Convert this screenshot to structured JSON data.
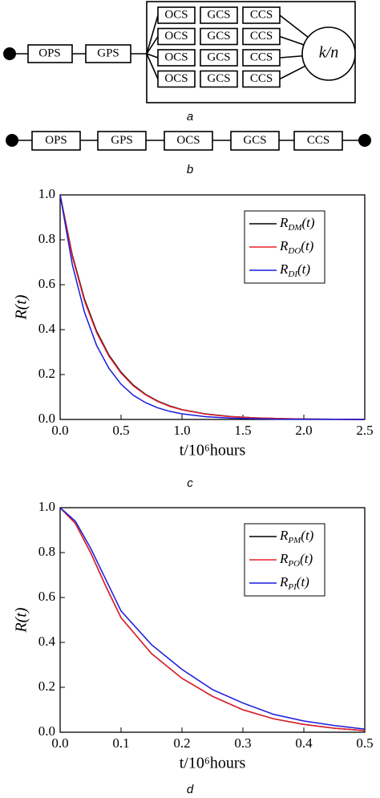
{
  "diagram_a": {
    "left": [
      "OPS",
      "GPS"
    ],
    "rows": [
      [
        "OCS",
        "GCS",
        "CCS"
      ],
      [
        "OCS",
        "GCS",
        "CCS"
      ],
      [
        "OCS",
        "GCS",
        "CCS"
      ],
      [
        "OCS",
        "GCS",
        "CCS"
      ]
    ],
    "voter": "k/n",
    "caption": "a"
  },
  "diagram_b": {
    "blocks": [
      "OPS",
      "GPS",
      "OCS",
      "GCS",
      "CCS"
    ],
    "caption": "b"
  },
  "chart_data": [
    {
      "type": "line",
      "caption": "c",
      "ylabel": "R(t)",
      "xlabel": "t/10⁶hours",
      "x": [
        0,
        0.1,
        0.2,
        0.3,
        0.4,
        0.5,
        0.6,
        0.7,
        0.8,
        0.9,
        1.0,
        1.2,
        1.4,
        1.6,
        1.8,
        2.0,
        2.5
      ],
      "series": [
        {
          "name": "RDM(t)",
          "color": "#000000",
          "values": [
            1,
            0.732,
            0.535,
            0.392,
            0.287,
            0.21,
            0.153,
            0.112,
            0.082,
            0.06,
            0.044,
            0.024,
            0.013,
            0.007,
            0.004,
            0.002,
            0
          ]
        },
        {
          "name": "RDO(t)",
          "color": "#e8202a",
          "values": [
            1,
            0.725,
            0.528,
            0.386,
            0.282,
            0.206,
            0.15,
            0.11,
            0.08,
            0.058,
            0.043,
            0.023,
            0.012,
            0.007,
            0.004,
            0.002,
            0
          ]
        },
        {
          "name": "RDI(t)",
          "color": "#1a1adb",
          "values": [
            1,
            0.69,
            0.477,
            0.329,
            0.228,
            0.157,
            0.108,
            0.075,
            0.052,
            0.036,
            0.025,
            0.012,
            0.006,
            0.003,
            0.001,
            0.001,
            0
          ]
        }
      ],
      "xlim": [
        0,
        2.5
      ],
      "ylim": [
        0,
        1
      ],
      "xticks": [
        {
          "value": 0,
          "label": "0.0"
        },
        0.5,
        {
          "value": 1,
          "label": "1.0"
        },
        1.5,
        {
          "value": 2,
          "label": "2.0"
        },
        2.5
      ],
      "yticks": [
        {
          "value": 0,
          "label": "0.0"
        },
        0.2,
        0.4,
        0.6,
        0.8,
        {
          "value": 1,
          "label": "1.0"
        }
      ],
      "legend": "upper right"
    },
    {
      "type": "line",
      "caption": "d",
      "ylabel": "R(t)",
      "xlabel": "t/10⁶hours",
      "x": [
        0,
        0.025,
        0.05,
        0.075,
        0.1,
        0.15,
        0.2,
        0.25,
        0.3,
        0.35,
        0.4,
        0.45,
        0.5
      ],
      "series": [
        {
          "name": "RPM(t)",
          "color": "#000000",
          "values": [
            1,
            0.93,
            0.8,
            0.65,
            0.51,
            0.35,
            0.24,
            0.16,
            0.1,
            0.06,
            0.035,
            0.018,
            0.007
          ]
        },
        {
          "name": "RPO(t)",
          "color": "#e8202a",
          "values": [
            1,
            0.93,
            0.8,
            0.65,
            0.51,
            0.35,
            0.24,
            0.16,
            0.1,
            0.06,
            0.035,
            0.018,
            0.007
          ]
        },
        {
          "name": "RPI(t)",
          "color": "#1a1adb",
          "values": [
            1,
            0.94,
            0.82,
            0.68,
            0.54,
            0.39,
            0.28,
            0.19,
            0.13,
            0.08,
            0.05,
            0.03,
            0.014
          ]
        }
      ],
      "xlim": [
        0,
        0.5
      ],
      "ylim": [
        0,
        1
      ],
      "xticks": [
        {
          "value": 0,
          "label": "0.0"
        },
        0.1,
        0.2,
        0.3,
        0.4,
        0.5
      ],
      "yticks": [
        {
          "value": 0,
          "label": "0.0"
        },
        0.2,
        0.4,
        0.6,
        0.8,
        {
          "value": 1,
          "label": "1.0"
        }
      ],
      "legend": "upper right"
    }
  ]
}
